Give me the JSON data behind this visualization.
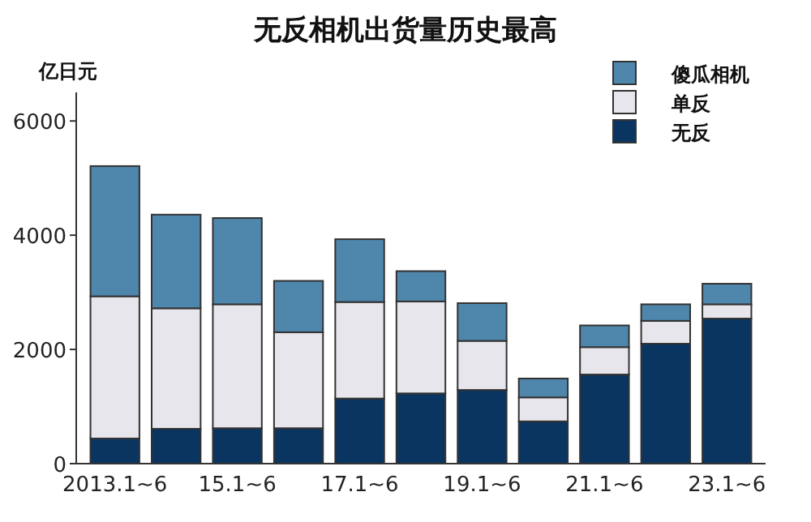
{
  "chart_data": {
    "type": "bar",
    "title": "无反相机出货量历史最高",
    "ylabel": "亿日元",
    "categories": [
      "2013.1~6",
      null,
      "15.1~6",
      null,
      "17.1~6",
      null,
      "19.1~6",
      null,
      "21.1~6",
      null,
      "23.1~6"
    ],
    "stacked": true,
    "ylim": [
      0,
      6500
    ],
    "yticks": [
      0,
      2000,
      4000,
      6000
    ],
    "legend": "top right",
    "series": [
      {
        "name": "无反",
        "color": "#0b3561",
        "values": [
          440,
          610,
          620,
          620,
          1140,
          1230,
          1290,
          740,
          1560,
          2100,
          2540
        ]
      },
      {
        "name": "单反",
        "color": "#e6e6ec",
        "values": [
          2490,
          2110,
          2170,
          1680,
          1690,
          1610,
          860,
          420,
          480,
          400,
          250
        ]
      },
      {
        "name": "傻瓜相机",
        "color": "#4f86ab",
        "values": [
          2280,
          1640,
          1510,
          900,
          1100,
          530,
          660,
          330,
          380,
          290,
          360
        ]
      }
    ]
  }
}
